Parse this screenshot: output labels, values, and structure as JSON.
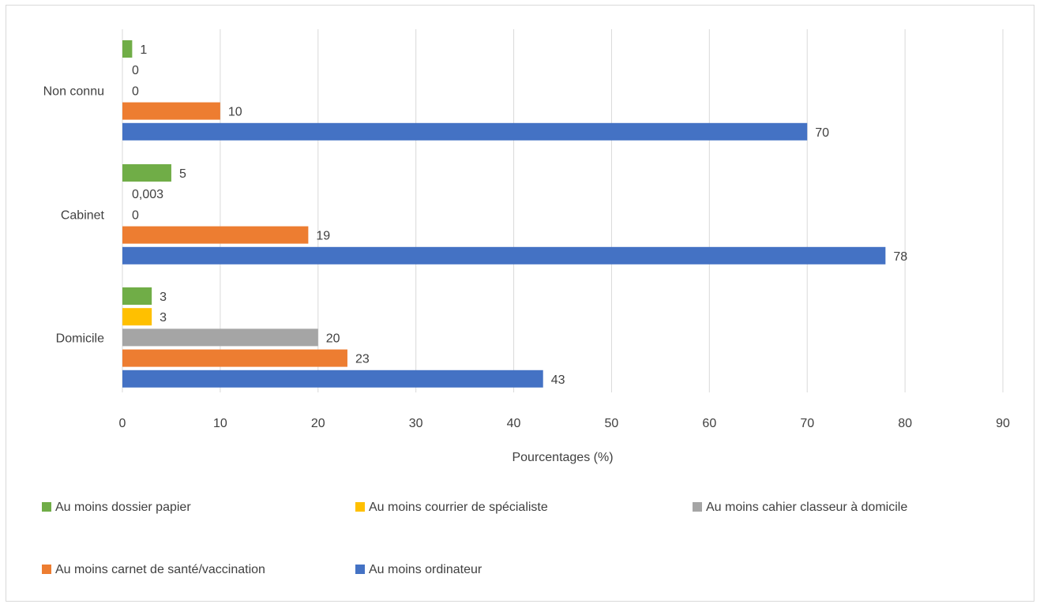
{
  "chart_data": {
    "type": "bar",
    "orientation": "horizontal",
    "categories": [
      "Non connu",
      "Cabinet",
      "Domicile"
    ],
    "series": [
      {
        "name": "Au moins dossier papier",
        "color": "#70ad47",
        "values": [
          1,
          5,
          3
        ],
        "labels": [
          "1",
          "5",
          "3"
        ]
      },
      {
        "name": "Au moins courrier de spécialiste",
        "color": "#ffc000",
        "values": [
          0,
          0.003,
          3
        ],
        "labels": [
          "0",
          "0,003",
          "3"
        ]
      },
      {
        "name": "Au moins cahier classeur à domicile",
        "color": "#a5a5a5",
        "values": [
          0,
          0,
          20
        ],
        "labels": [
          "0",
          "0",
          "20"
        ]
      },
      {
        "name": "Au moins carnet de santé/vaccination",
        "color": "#ed7d31",
        "values": [
          10,
          19,
          23
        ],
        "labels": [
          "10",
          "19",
          "23"
        ]
      },
      {
        "name": "Au moins ordinateur",
        "color": "#4472c4",
        "values": [
          70,
          78,
          43
        ],
        "labels": [
          "70",
          "78",
          "43"
        ]
      }
    ],
    "xlabel": "Pourcentages (%)",
    "xlim": [
      0,
      90
    ],
    "xticks": [
      0,
      10,
      20,
      30,
      40,
      50,
      60,
      70,
      80,
      90
    ],
    "grid": "vertical",
    "legend_position": "bottom"
  }
}
